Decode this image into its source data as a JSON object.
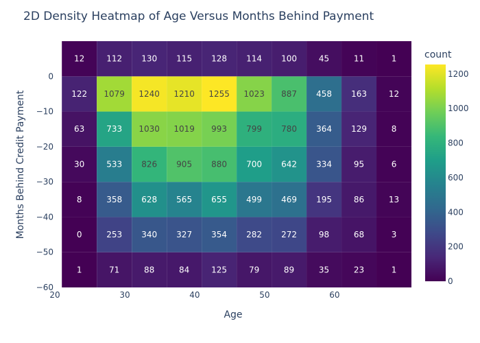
{
  "chart_data": {
    "type": "heatmap",
    "title": "2D Density Heatmap of Age Versus Months Behind Payment",
    "xlabel": "Age",
    "ylabel": "Months Behind Credit Payment",
    "colorbar_title": "count",
    "x_bins": [
      [
        21,
        26
      ],
      [
        26,
        31
      ],
      [
        31,
        36
      ],
      [
        36,
        41
      ],
      [
        41,
        46
      ],
      [
        46,
        51
      ],
      [
        51,
        56
      ],
      [
        56,
        61
      ],
      [
        61,
        66
      ],
      [
        66,
        71
      ]
    ],
    "y_bins": [
      [
        -60,
        -50
      ],
      [
        -50,
        -40
      ],
      [
        -40,
        -30
      ],
      [
        -30,
        -20
      ],
      [
        -20,
        -10
      ],
      [
        -10,
        0
      ],
      [
        0,
        10
      ]
    ],
    "values": [
      [
        1,
        71,
        88,
        84,
        125,
        79,
        89,
        35,
        23,
        1
      ],
      [
        0,
        253,
        340,
        327,
        354,
        282,
        272,
        98,
        68,
        3
      ],
      [
        8,
        358,
        628,
        565,
        655,
        499,
        469,
        195,
        86,
        13
      ],
      [
        30,
        533,
        826,
        905,
        880,
        700,
        642,
        334,
        95,
        6
      ],
      [
        63,
        733,
        1030,
        1019,
        993,
        799,
        780,
        364,
        129,
        8
      ],
      [
        122,
        1079,
        1240,
        1210,
        1255,
        1023,
        887,
        458,
        163,
        12
      ],
      [
        12,
        112,
        130,
        115,
        128,
        114,
        100,
        45,
        11,
        1
      ]
    ],
    "xlim": [
      20,
      71
    ],
    "ylim": [
      -60,
      10
    ],
    "x_ticks": [
      20,
      30,
      40,
      50,
      60
    ],
    "x_tick_labels": [
      "20",
      "30",
      "40",
      "50",
      "60"
    ],
    "y_ticks": [
      0,
      -10,
      -20,
      -30,
      -40,
      -50,
      -60
    ],
    "y_tick_labels": [
      "0",
      "−10",
      "−20",
      "−30",
      "−40",
      "−50",
      "−60"
    ],
    "zlim": [
      0,
      1255
    ],
    "colorbar_ticks": [
      0,
      200,
      400,
      600,
      800,
      1000,
      1200
    ],
    "colorbar_tick_labels": [
      "0",
      "200",
      "400",
      "600",
      "800",
      "1000",
      "1200"
    ],
    "colorscale": "Viridis",
    "grid": false,
    "legend_position": "right"
  }
}
